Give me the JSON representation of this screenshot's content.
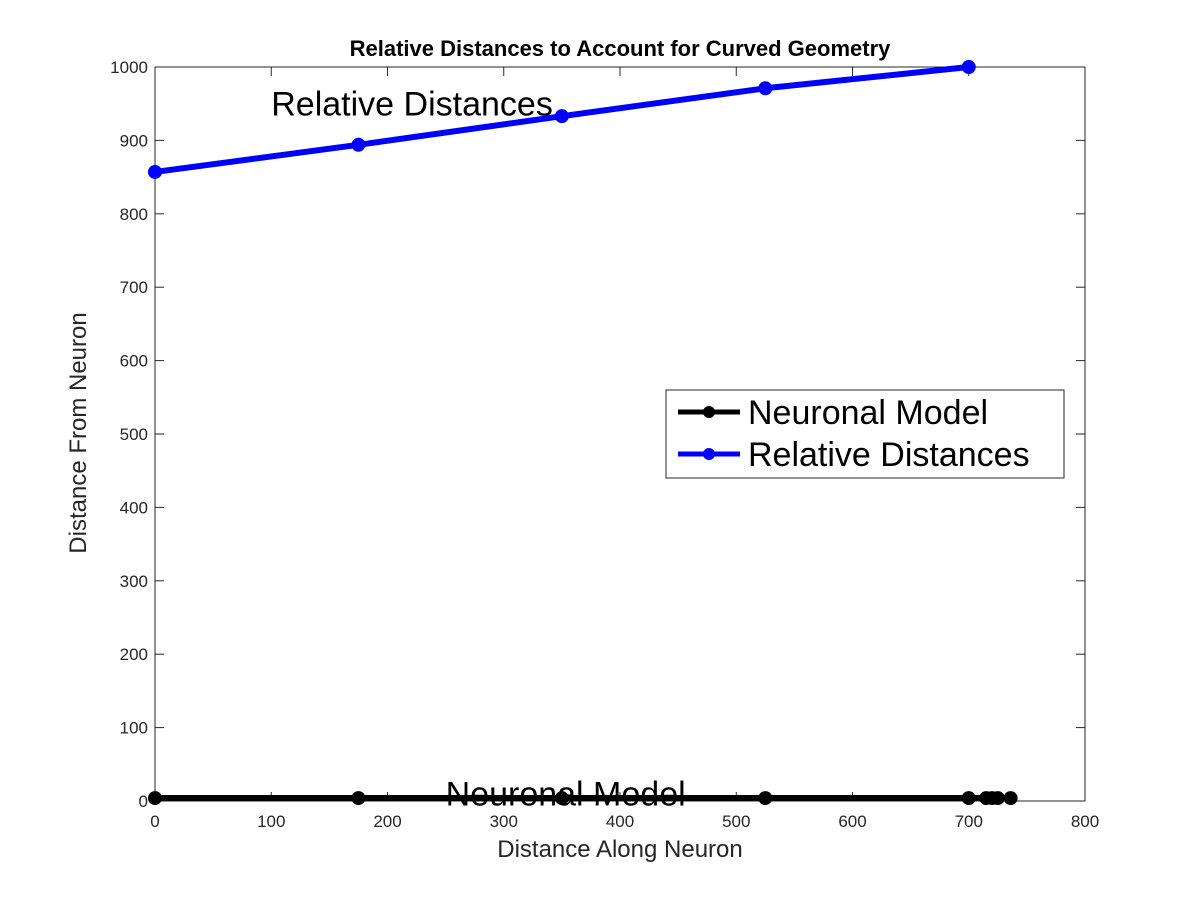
{
  "chart_data": {
    "type": "line",
    "title": "Relative Distances to Account for Curved Geometry",
    "xlabel": "Distance Along Neuron",
    "ylabel": "Distance From Neuron",
    "xlim": [
      0,
      800
    ],
    "ylim": [
      0,
      1000
    ],
    "xticks": [
      0,
      100,
      200,
      300,
      400,
      500,
      600,
      700,
      800
    ],
    "yticks": [
      0,
      100,
      200,
      300,
      400,
      500,
      600,
      700,
      800,
      900,
      1000
    ],
    "grid": false,
    "legend_position": "center-right",
    "series": [
      {
        "name": "Neuronal Model",
        "color": "#000000",
        "x": [
          0,
          175,
          350,
          525,
          700,
          715,
          720,
          725,
          736
        ],
        "y": [
          4,
          4,
          4,
          4,
          4,
          4,
          4,
          4,
          4
        ]
      },
      {
        "name": "Relative Distances",
        "color": "#0000ff",
        "x": [
          0,
          175,
          350,
          525,
          700
        ],
        "y": [
          857,
          894,
          933,
          971,
          1000
        ]
      }
    ],
    "annotations": [
      {
        "text": "Relative Distances",
        "x": 100,
        "y": 950,
        "color": "#000000"
      },
      {
        "text": "Neuronal Model",
        "x": 250,
        "y": 10,
        "color": "#000000"
      }
    ]
  }
}
